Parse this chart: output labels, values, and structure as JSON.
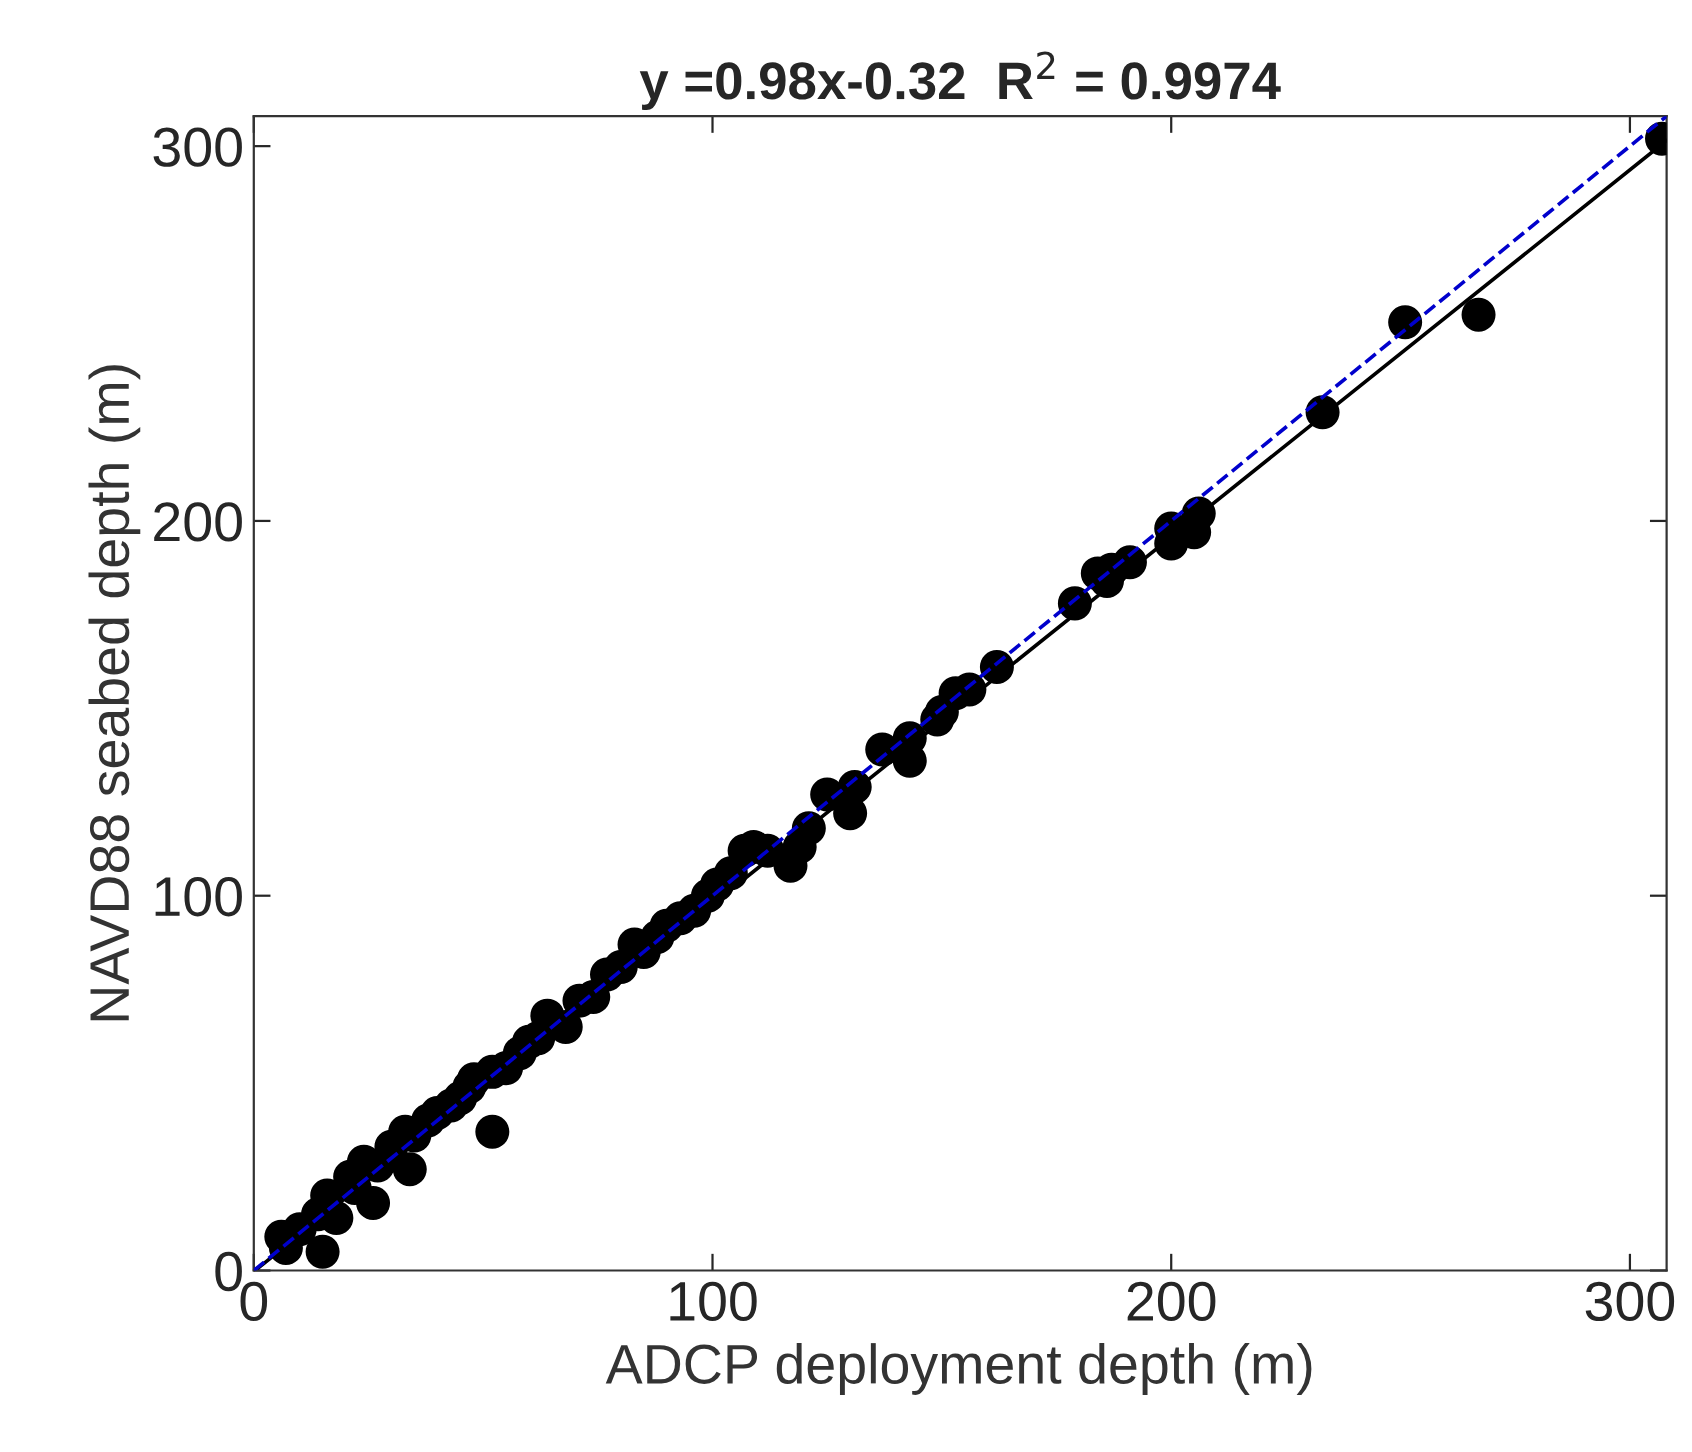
{
  "chart_data": {
    "type": "scatter",
    "title": "y =0.98x-0.32  R$^{2}$ = 0.9974",
    "xlabel": "ADCP deployment depth (m)",
    "ylabel": "NAVD88 seabed depth (m)",
    "xlim": [
      0,
      308
    ],
    "ylim": [
      0,
      308
    ],
    "xticks": [
      0,
      100,
      200,
      300
    ],
    "yticks": [
      0,
      100,
      200,
      300
    ],
    "grid": false,
    "legend": false,
    "marker": "circle",
    "series": [
      {
        "color": "#000000",
        "x": [
          307,
          251,
          267,
          233,
          206,
          205,
          200,
          200,
          191,
          187,
          184,
          186,
          179,
          162,
          156,
          153,
          150,
          149,
          143,
          143,
          137,
          130,
          131,
          125,
          121,
          119,
          117,
          112,
          109,
          107,
          104,
          101,
          99,
          96,
          93,
          90,
          88,
          85,
          83,
          80,
          77,
          74,
          71,
          68,
          64,
          62,
          60,
          58,
          55,
          52,
          52,
          48,
          47,
          45,
          43,
          40,
          38,
          35,
          33,
          34,
          30,
          27,
          24,
          26,
          22,
          21,
          16,
          14,
          10,
          7,
          15,
          18,
          6
        ],
        "values": [
          302,
          253,
          255,
          229,
          202,
          197,
          198,
          194,
          189,
          187,
          186,
          184,
          178,
          161,
          155,
          154,
          149,
          147,
          142,
          136,
          139,
          122,
          129,
          127,
          118,
          113,
          108,
          112,
          113,
          112,
          106,
          103,
          100,
          96,
          94,
          92,
          89,
          85,
          87,
          81,
          79,
          73,
          72,
          65,
          68,
          62,
          61,
          58,
          54,
          53,
          37,
          51,
          49,
          46,
          44,
          42,
          40,
          36,
          37,
          27,
          33,
          28,
          29,
          18,
          22,
          25,
          20,
          15,
          11,
          6,
          5,
          14,
          9
        ]
      },
      {
        "type": "line",
        "marker": "none",
        "color": "#000000",
        "line_style": "solid",
        "x": [
          1,
          308
        ],
        "values": [
          0.7,
          301.5
        ]
      },
      {
        "type": "line",
        "marker": "none",
        "color": "#0000cc",
        "line_style": "dashed",
        "x": [
          0,
          308
        ],
        "values": [
          0,
          308
        ]
      }
    ]
  }
}
